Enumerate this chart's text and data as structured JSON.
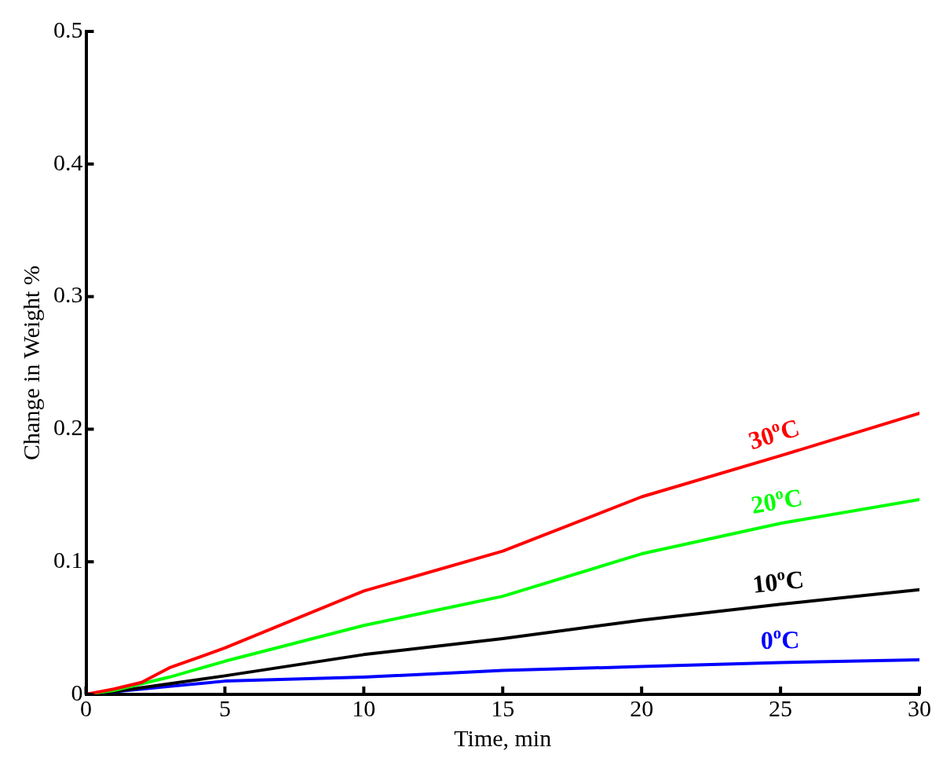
{
  "chart_data": {
    "type": "line",
    "xlabel": "Time, min",
    "ylabel": "Change in Weight %",
    "x": [
      0,
      1,
      2,
      3,
      5,
      10,
      15,
      20,
      25,
      30
    ],
    "xlim": [
      0,
      30
    ],
    "xticks": [
      0,
      5,
      10,
      15,
      20,
      25,
      30
    ],
    "ylim": [
      0,
      0.5
    ],
    "yticks": [
      0,
      0.1,
      0.2,
      0.3,
      0.4,
      0.5
    ],
    "grid": false,
    "legend": false,
    "marker": "none",
    "line_style": "solid",
    "series": [
      {
        "name": "30$^{o}$C",
        "color": "#ff0000",
        "values": [
          0,
          0.004,
          0.009,
          0.02,
          0.035,
          0.078,
          0.108,
          0.149,
          0.18,
          0.212
        ]
      },
      {
        "name": "20$^{o}$C",
        "color": "#00ff00",
        "values": [
          0,
          0.003,
          0.008,
          0.013,
          0.025,
          0.052,
          0.074,
          0.106,
          0.129,
          0.147
        ]
      },
      {
        "name": "10$^{o}$C",
        "color": "#000000",
        "values": [
          0,
          0.002,
          0.005,
          0.008,
          0.014,
          0.03,
          0.042,
          0.056,
          0.068,
          0.079
        ]
      },
      {
        "name": "0$^{o}$C",
        "color": "#0000ff",
        "x": [
          0,
          2,
          3,
          5,
          10,
          15,
          20,
          25,
          30
        ],
        "values": [
          0,
          0.004,
          0.006,
          0.01,
          0.013,
          0.018,
          0.021,
          0.024,
          0.026
        ]
      }
    ]
  }
}
